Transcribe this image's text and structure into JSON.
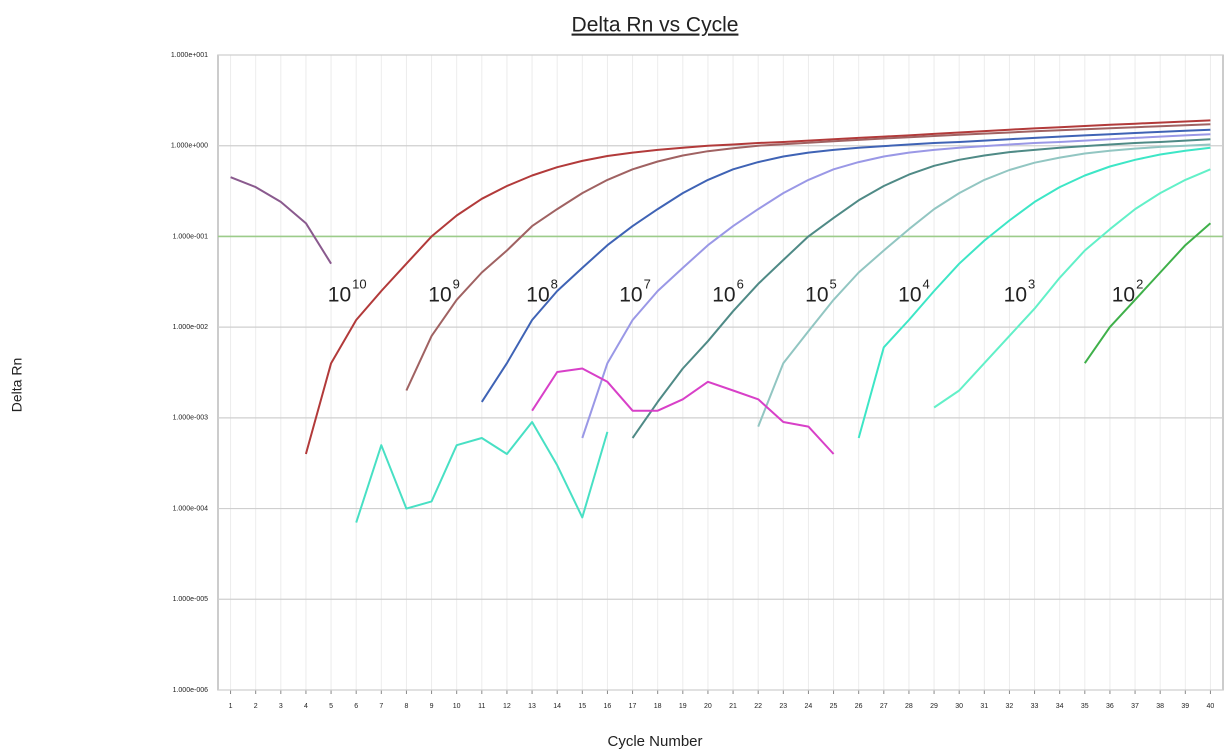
{
  "chart_data": {
    "type": "line",
    "title": "Delta Rn vs Cycle",
    "xlabel": "Cycle Number",
    "ylabel": "Delta Rn",
    "log_y": true,
    "grid": true,
    "threshold": 0.1,
    "threshold_color": "#9ccc8a",
    "xlim": [
      0.5,
      40.5
    ],
    "ylim": [
      1e-06,
      10
    ],
    "xticks": [
      1,
      2,
      3,
      4,
      5,
      6,
      7,
      8,
      9,
      10,
      11,
      12,
      13,
      14,
      15,
      16,
      17,
      18,
      19,
      20,
      21,
      22,
      23,
      24,
      25,
      26,
      27,
      28,
      29,
      30,
      31,
      32,
      33,
      34,
      35,
      36,
      37,
      38,
      39,
      40
    ],
    "yticks": [
      {
        "value": 1e-06,
        "label": "1.000e-006"
      },
      {
        "value": 1e-05,
        "label": "1.000e-005"
      },
      {
        "value": 0.0001,
        "label": "1.000e-004"
      },
      {
        "value": 0.001,
        "label": "1.000e-003"
      },
      {
        "value": 0.01,
        "label": "1.000e-002"
      },
      {
        "value": 0.1,
        "label": "1.000e-001"
      },
      {
        "value": 1,
        "label": "1.000e+000"
      },
      {
        "value": 10,
        "label": "1.000e+001"
      }
    ],
    "x": [
      1,
      2,
      3,
      4,
      5,
      6,
      7,
      8,
      9,
      10,
      11,
      12,
      13,
      14,
      15,
      16,
      17,
      18,
      19,
      20,
      21,
      22,
      23,
      24,
      25,
      26,
      27,
      28,
      29,
      30,
      31,
      32,
      33,
      34,
      35,
      36,
      37,
      38,
      39,
      40
    ],
    "series": [
      {
        "color": "#b23a3a",
        "values": [
          null,
          null,
          null,
          0.0004,
          0.004,
          0.012,
          0.025,
          0.05,
          0.1,
          0.17,
          0.26,
          0.36,
          0.47,
          0.58,
          0.68,
          0.77,
          0.84,
          0.9,
          0.95,
          1.0,
          1.03,
          1.07,
          1.1,
          1.14,
          1.18,
          1.22,
          1.26,
          1.3,
          1.35,
          1.4,
          1.45,
          1.5,
          1.55,
          1.6,
          1.65,
          1.7,
          1.75,
          1.8,
          1.85,
          1.9
        ]
      },
      {
        "color": "#a06262",
        "values": [
          null,
          null,
          null,
          null,
          null,
          null,
          null,
          0.002,
          0.008,
          0.02,
          0.04,
          0.07,
          0.13,
          0.2,
          0.3,
          0.42,
          0.55,
          0.67,
          0.78,
          0.87,
          0.94,
          1.0,
          1.04,
          1.08,
          1.12,
          1.16,
          1.2,
          1.24,
          1.28,
          1.32,
          1.36,
          1.4,
          1.44,
          1.48,
          1.52,
          1.56,
          1.6,
          1.64,
          1.68,
          1.72
        ]
      },
      {
        "color": "#3f63b5",
        "values": [
          null,
          null,
          null,
          null,
          null,
          null,
          null,
          null,
          null,
          null,
          0.0015,
          0.004,
          0.012,
          0.025,
          0.045,
          0.08,
          0.13,
          0.2,
          0.3,
          0.42,
          0.55,
          0.66,
          0.76,
          0.84,
          0.9,
          0.95,
          0.99,
          1.03,
          1.07,
          1.1,
          1.14,
          1.18,
          1.22,
          1.26,
          1.3,
          1.34,
          1.38,
          1.42,
          1.46,
          1.5
        ]
      },
      {
        "color": "#9a98e6",
        "values": [
          null,
          null,
          null,
          null,
          null,
          null,
          null,
          null,
          null,
          null,
          null,
          null,
          null,
          null,
          0.0006,
          0.004,
          0.012,
          0.025,
          0.045,
          0.08,
          0.13,
          0.2,
          0.3,
          0.42,
          0.55,
          0.66,
          0.76,
          0.84,
          0.9,
          0.95,
          0.99,
          1.03,
          1.07,
          1.1,
          1.14,
          1.18,
          1.22,
          1.26,
          1.3,
          1.34
        ]
      },
      {
        "color": "#4f8a86",
        "values": [
          null,
          null,
          null,
          null,
          null,
          null,
          null,
          null,
          null,
          null,
          null,
          null,
          null,
          null,
          null,
          null,
          0.0006,
          0.0015,
          0.0035,
          0.007,
          0.015,
          0.03,
          0.055,
          0.1,
          0.16,
          0.25,
          0.36,
          0.48,
          0.6,
          0.7,
          0.78,
          0.85,
          0.9,
          0.95,
          0.99,
          1.03,
          1.07,
          1.1,
          1.14,
          1.18
        ]
      },
      {
        "color": "#92c6c2",
        "values": [
          null,
          null,
          null,
          null,
          null,
          null,
          null,
          null,
          null,
          null,
          null,
          null,
          null,
          null,
          null,
          null,
          null,
          null,
          null,
          null,
          null,
          0.0008,
          0.004,
          0.009,
          0.02,
          0.04,
          0.07,
          0.12,
          0.2,
          0.3,
          0.42,
          0.54,
          0.65,
          0.74,
          0.82,
          0.88,
          0.93,
          0.97,
          1.0,
          1.03
        ]
      },
      {
        "color": "#3de6c6",
        "values": [
          null,
          null,
          null,
          null,
          null,
          null,
          null,
          null,
          null,
          null,
          null,
          null,
          null,
          null,
          null,
          null,
          null,
          null,
          null,
          null,
          null,
          null,
          null,
          null,
          null,
          0.0006,
          0.006,
          0.012,
          0.025,
          0.05,
          0.09,
          0.15,
          0.24,
          0.35,
          0.47,
          0.59,
          0.7,
          0.8,
          0.88,
          0.95
        ]
      },
      {
        "color": "#62f0c8",
        "values": [
          null,
          null,
          null,
          null,
          null,
          null,
          null,
          null,
          null,
          null,
          null,
          null,
          null,
          null,
          null,
          null,
          null,
          null,
          null,
          null,
          null,
          null,
          null,
          null,
          null,
          null,
          null,
          null,
          0.0013,
          0.002,
          0.004,
          0.008,
          0.016,
          0.035,
          0.07,
          0.12,
          0.2,
          0.3,
          0.42,
          0.55
        ]
      },
      {
        "color": "#3fb04a",
        "values": [
          null,
          null,
          null,
          null,
          null,
          null,
          null,
          null,
          null,
          null,
          null,
          null,
          null,
          null,
          null,
          null,
          null,
          null,
          null,
          null,
          null,
          null,
          null,
          null,
          null,
          null,
          null,
          null,
          null,
          null,
          null,
          null,
          null,
          null,
          0.004,
          0.01,
          0.02,
          0.04,
          0.08,
          0.14
        ]
      },
      {
        "color": "#8a5a8e",
        "values": [
          0.45,
          0.35,
          0.24,
          0.14,
          0.05,
          null,
          null,
          null,
          null,
          null,
          null,
          null,
          null,
          null,
          null,
          null,
          null,
          null,
          null,
          null,
          null,
          null,
          null,
          null,
          null,
          null,
          null,
          null,
          null,
          null,
          null,
          null,
          null,
          null,
          null,
          null,
          null,
          null,
          null,
          null
        ]
      },
      {
        "color": "#d840c8",
        "values": [
          null,
          null,
          null,
          null,
          null,
          null,
          null,
          null,
          null,
          null,
          null,
          null,
          0.0012,
          0.0032,
          0.0035,
          0.0025,
          0.0012,
          0.0012,
          0.0016,
          0.0025,
          0.002,
          0.0016,
          0.0009,
          0.0008,
          0.0004,
          null,
          null,
          null,
          null,
          null,
          null,
          null,
          null,
          null,
          null,
          null,
          null,
          null,
          null,
          null
        ]
      },
      {
        "color": "#48e0c4",
        "values": [
          null,
          null,
          null,
          null,
          null,
          7e-05,
          0.0005,
          0.0001,
          0.00012,
          0.0005,
          0.0006,
          0.0004,
          0.0009,
          0.0003,
          8e-05,
          0.0007,
          null,
          null,
          null,
          null,
          null,
          null,
          null,
          null,
          null,
          null,
          null,
          null,
          null,
          null,
          null,
          null,
          null,
          null,
          null,
          null,
          null,
          null,
          null,
          null
        ]
      }
    ],
    "annotations": [
      {
        "text": "10",
        "exponent": "10",
        "x": 5.8,
        "y": 0.022
      },
      {
        "text": "10",
        "exponent": "9",
        "x": 9.8,
        "y": 0.022
      },
      {
        "text": "10",
        "exponent": "8",
        "x": 13.7,
        "y": 0.022
      },
      {
        "text": "10",
        "exponent": "7",
        "x": 17.4,
        "y": 0.022
      },
      {
        "text": "10",
        "exponent": "6",
        "x": 21.1,
        "y": 0.022
      },
      {
        "text": "10",
        "exponent": "5",
        "x": 24.8,
        "y": 0.022
      },
      {
        "text": "10",
        "exponent": "4",
        "x": 28.5,
        "y": 0.022
      },
      {
        "text": "10",
        "exponent": "3",
        "x": 32.7,
        "y": 0.022
      },
      {
        "text": "10",
        "exponent": "2",
        "x": 37.0,
        "y": 0.022
      }
    ]
  }
}
